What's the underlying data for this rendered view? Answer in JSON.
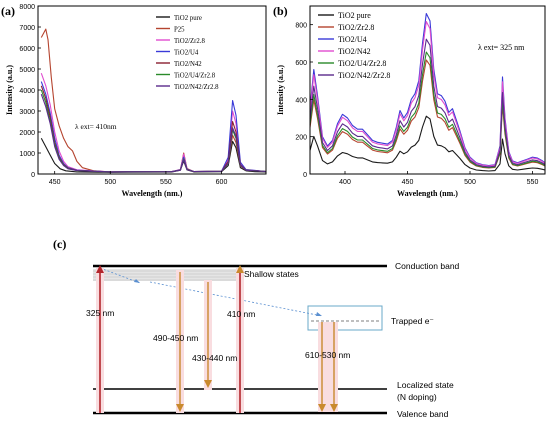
{
  "panels": {
    "a": "(a)",
    "b": "(b)",
    "c": "(c)"
  },
  "chart_data": [
    {
      "id": "a",
      "type": "line",
      "title": "",
      "xlabel": "Wavelength (nm.)",
      "ylabel": "Intensity (a.u.)",
      "xlim": [
        435,
        640
      ],
      "ylim": [
        0,
        8000
      ],
      "xticks": [
        450,
        500,
        550,
        600
      ],
      "yticks": [
        0,
        1000,
        2000,
        3000,
        4000,
        5000,
        6000,
        7000,
        8000
      ],
      "annotation": "λ ext= 410nm",
      "legend_position": "top-right",
      "series": [
        {
          "name": "TiO2 pure",
          "color": "#1a1a1a",
          "points": [
            [
              438,
              1700
            ],
            [
              442,
              1300
            ],
            [
              446,
              900
            ],
            [
              450,
              500
            ],
            [
              455,
              250
            ],
            [
              460,
              150
            ],
            [
              470,
              100
            ],
            [
              500,
              80
            ],
            [
              555,
              90
            ],
            [
              563,
              180
            ],
            [
              566,
              620
            ],
            [
              569,
              200
            ],
            [
              575,
              100
            ],
            [
              600,
              110
            ],
            [
              606,
              400
            ],
            [
              610,
              1550
            ],
            [
              613,
              1250
            ],
            [
              617,
              300
            ],
            [
              622,
              150
            ],
            [
              630,
              110
            ],
            [
              640,
              100
            ]
          ]
        },
        {
          "name": "P25",
          "color": "#b5442f",
          "points": [
            [
              438,
              6500
            ],
            [
              442,
              6900
            ],
            [
              444,
              6400
            ],
            [
              447,
              4600
            ],
            [
              450,
              3100
            ],
            [
              454,
              2300
            ],
            [
              458,
              1700
            ],
            [
              462,
              1300
            ],
            [
              466,
              1100
            ],
            [
              470,
              600
            ],
            [
              475,
              300
            ],
            [
              485,
              150
            ],
            [
              500,
              100
            ],
            [
              555,
              110
            ],
            [
              563,
              200
            ],
            [
              566,
              1000
            ],
            [
              569,
              260
            ],
            [
              575,
              120
            ],
            [
              600,
              130
            ],
            [
              606,
              500
            ],
            [
              610,
              1850
            ],
            [
              613,
              1500
            ],
            [
              617,
              380
            ],
            [
              622,
              180
            ],
            [
              640,
              120
            ]
          ]
        },
        {
          "name": "TiO2/Zr2.8",
          "color": "#e04dcf",
          "points": [
            [
              438,
              4800
            ],
            [
              442,
              4200
            ],
            [
              446,
              3300
            ],
            [
              450,
              2000
            ],
            [
              454,
              1100
            ],
            [
              458,
              600
            ],
            [
              462,
              350
            ],
            [
              470,
              200
            ],
            [
              500,
              100
            ],
            [
              555,
              110
            ],
            [
              563,
              220
            ],
            [
              566,
              950
            ],
            [
              569,
              250
            ],
            [
              575,
              120
            ],
            [
              600,
              130
            ],
            [
              606,
              700
            ],
            [
              610,
              3000
            ],
            [
              613,
              2400
            ],
            [
              617,
              500
            ],
            [
              622,
              200
            ],
            [
              640,
              120
            ]
          ]
        },
        {
          "name": "TiO2/U4",
          "color": "#3a3ad8",
          "points": [
            [
              438,
              4400
            ],
            [
              442,
              3800
            ],
            [
              446,
              2900
            ],
            [
              450,
              1700
            ],
            [
              454,
              900
            ],
            [
              458,
              500
            ],
            [
              462,
              300
            ],
            [
              470,
              180
            ],
            [
              500,
              100
            ],
            [
              555,
              110
            ],
            [
              563,
              200
            ],
            [
              566,
              800
            ],
            [
              569,
              230
            ],
            [
              575,
              120
            ],
            [
              600,
              130
            ],
            [
              606,
              800
            ],
            [
              610,
              3500
            ],
            [
              613,
              2800
            ],
            [
              617,
              560
            ],
            [
              622,
              210
            ],
            [
              640,
              120
            ]
          ]
        },
        {
          "name": "TiO2/N42",
          "color": "#8a2030",
          "points": [
            [
              438,
              4200
            ],
            [
              442,
              3600
            ],
            [
              446,
              2700
            ],
            [
              450,
              1500
            ],
            [
              454,
              800
            ],
            [
              458,
              450
            ],
            [
              462,
              280
            ],
            [
              470,
              170
            ],
            [
              500,
              100
            ],
            [
              555,
              110
            ],
            [
              563,
              190
            ],
            [
              566,
              700
            ],
            [
              569,
              220
            ],
            [
              575,
              120
            ],
            [
              600,
              130
            ],
            [
              606,
              600
            ],
            [
              610,
              2500
            ],
            [
              613,
              2000
            ],
            [
              617,
              450
            ],
            [
              622,
              190
            ],
            [
              640,
              120
            ]
          ]
        },
        {
          "name": "TiO2/U4/Zr2.8",
          "color": "#2a8a2a",
          "points": [
            [
              438,
              4000
            ],
            [
              442,
              3400
            ],
            [
              446,
              2500
            ],
            [
              450,
              1400
            ],
            [
              454,
              750
            ],
            [
              458,
              420
            ],
            [
              462,
              260
            ],
            [
              470,
              160
            ],
            [
              500,
              100
            ],
            [
              555,
              110
            ],
            [
              563,
              190
            ],
            [
              566,
              720
            ],
            [
              569,
              220
            ],
            [
              575,
              120
            ],
            [
              600,
              130
            ],
            [
              606,
              500
            ],
            [
              610,
              2100
            ],
            [
              613,
              1700
            ],
            [
              617,
              400
            ],
            [
              622,
              180
            ],
            [
              640,
              120
            ]
          ]
        },
        {
          "name": "TiO2/N42/Zr2.8",
          "color": "#5a2a8c",
          "points": [
            [
              438,
              3800
            ],
            [
              442,
              3200
            ],
            [
              446,
              2400
            ],
            [
              450,
              1300
            ],
            [
              454,
              700
            ],
            [
              458,
              400
            ],
            [
              462,
              250
            ],
            [
              470,
              160
            ],
            [
              500,
              100
            ],
            [
              555,
              110
            ],
            [
              563,
              180
            ],
            [
              566,
              680
            ],
            [
              569,
              210
            ],
            [
              575,
              120
            ],
            [
              600,
              130
            ],
            [
              606,
              520
            ],
            [
              610,
              2200
            ],
            [
              613,
              1800
            ],
            [
              617,
              420
            ],
            [
              622,
              180
            ],
            [
              640,
              120
            ]
          ]
        }
      ]
    },
    {
      "id": "b",
      "type": "line",
      "title": "",
      "xlabel": "Wavelength (nm.)",
      "ylabel": "Intensity (a.u.)",
      "xlim": [
        372,
        560
      ],
      "ylim": [
        0,
        900
      ],
      "xticks": [
        400,
        450,
        500,
        550
      ],
      "yticks": [
        0,
        200,
        400,
        600,
        800
      ],
      "annotation": "λ ext= 325 nm",
      "legend_position": "top-left",
      "series": [
        {
          "name": "TiO2 pure",
          "color": "#1a1a1a",
          "scale": 0.36
        },
        {
          "name": "TiO2/Zr2.8",
          "color": "#b5442f",
          "scale": 0.71
        },
        {
          "name": "TiO2/U4",
          "color": "#3a3ad8",
          "scale": 1.0
        },
        {
          "name": "TiO2/N42",
          "color": "#e04dcf",
          "scale": 0.95
        },
        {
          "name": "TiO2/U4/Zr2.8",
          "color": "#2a8a2a",
          "scale": 0.76
        },
        {
          "name": "TiO2/N42/Zr2.8",
          "color": "#5a2a8c",
          "scale": 0.84
        }
      ],
      "base_shape": [
        [
          372,
          350
        ],
        [
          375,
          560
        ],
        [
          378,
          420
        ],
        [
          382,
          200
        ],
        [
          386,
          150
        ],
        [
          390,
          180
        ],
        [
          394,
          270
        ],
        [
          398,
          320
        ],
        [
          402,
          300
        ],
        [
          406,
          260
        ],
        [
          410,
          240
        ],
        [
          414,
          240
        ],
        [
          418,
          210
        ],
        [
          422,
          180
        ],
        [
          426,
          170
        ],
        [
          430,
          165
        ],
        [
          434,
          160
        ],
        [
          438,
          180
        ],
        [
          441,
          250
        ],
        [
          444,
          340
        ],
        [
          447,
          300
        ],
        [
          450,
          330
        ],
        [
          453,
          400
        ],
        [
          456,
          430
        ],
        [
          459,
          500
        ],
        [
          462,
          700
        ],
        [
          465,
          860
        ],
        [
          468,
          820
        ],
        [
          471,
          560
        ],
        [
          474,
          430
        ],
        [
          477,
          420
        ],
        [
          480,
          390
        ],
        [
          483,
          330
        ],
        [
          486,
          350
        ],
        [
          489,
          290
        ],
        [
          492,
          230
        ],
        [
          496,
          140
        ],
        [
          500,
          90
        ],
        [
          505,
          60
        ],
        [
          510,
          50
        ],
        [
          515,
          45
        ],
        [
          520,
          50
        ],
        [
          524,
          150
        ],
        [
          526,
          520
        ],
        [
          528,
          300
        ],
        [
          531,
          120
        ],
        [
          534,
          70
        ],
        [
          538,
          60
        ],
        [
          542,
          70
        ],
        [
          546,
          80
        ],
        [
          550,
          90
        ],
        [
          554,
          85
        ],
        [
          558,
          70
        ],
        [
          560,
          60
        ]
      ]
    }
  ],
  "diagram": {
    "conduction_band": "Conduction band",
    "shallow_states": "Shallow states",
    "trapped": "Trapped e⁻",
    "localized_state": "Localized state",
    "n_doping": "(N doping)",
    "valence_band": "Valence band",
    "transitions": [
      "325 nm",
      "490-450 nm",
      "430-440 nm",
      "410 nm",
      "610-530 nm"
    ]
  }
}
